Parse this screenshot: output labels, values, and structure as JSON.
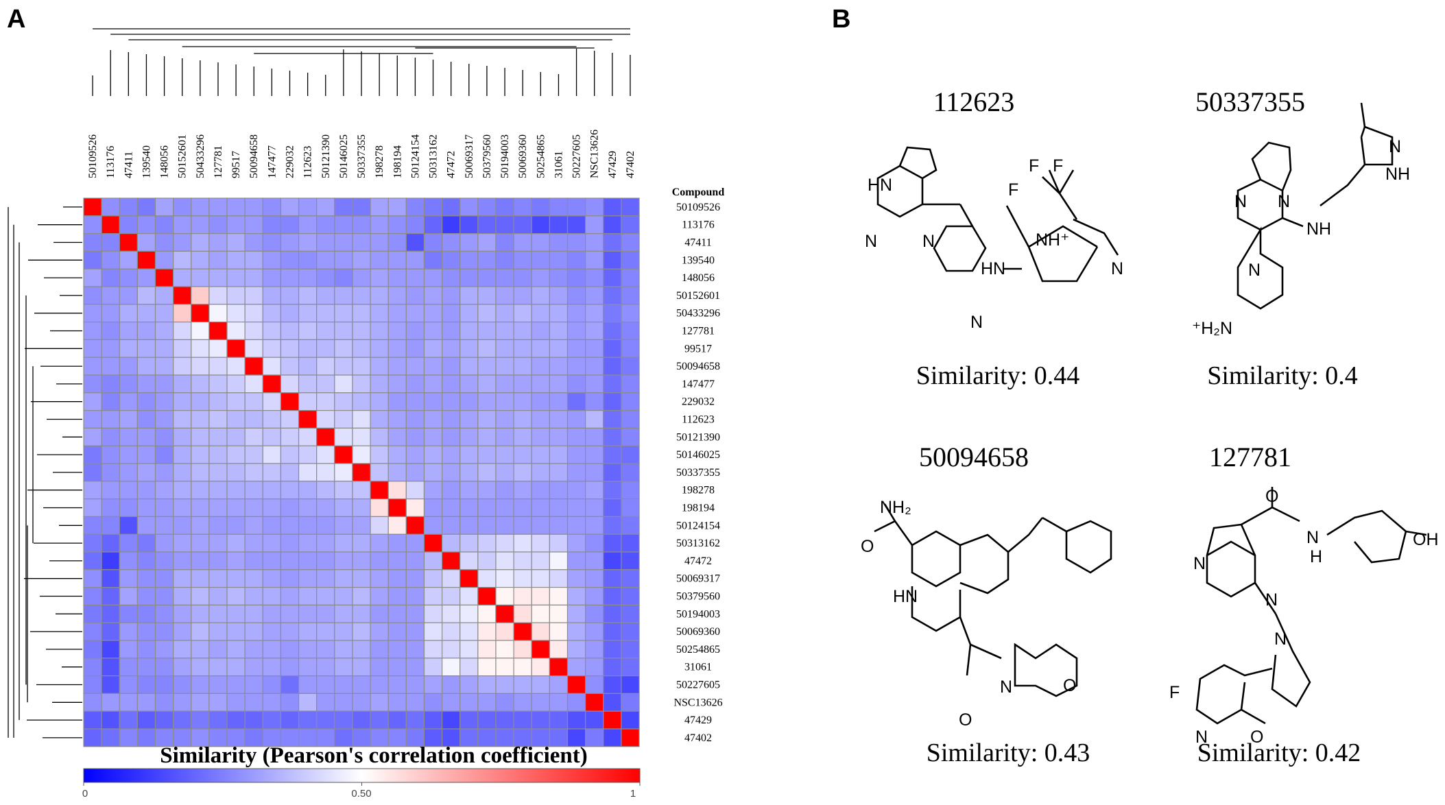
{
  "panels": {
    "a": "A",
    "b": "B"
  },
  "heatmap": {
    "compound_header": "Compound",
    "colorbar_title": "Similarity (Pearson's correlation coefficient)",
    "colorbar_ticks": [
      "0",
      "0.50",
      "1"
    ],
    "colors": {
      "low": "#0000ff",
      "mid": "#ffffff",
      "high": "#ff0000",
      "grid": "#8c8c8c"
    }
  },
  "chart_data": {
    "type": "heatmap",
    "title": "Similarity (Pearson's correlation coefficient)",
    "scale": {
      "min": 0,
      "mid": 0.5,
      "max": 1
    },
    "compounds": [
      "50109526",
      "113176",
      "47411",
      "139540",
      "148056",
      "50152601",
      "50433296",
      "127781",
      "99517",
      "50094658",
      "147477",
      "229032",
      "112623",
      "50121390",
      "50146025",
      "50337355",
      "198278",
      "198194",
      "50124154",
      "50313162",
      "47472",
      "50069317",
      "50379560",
      "50194003",
      "50069360",
      "50254865",
      "31061",
      "50227605",
      "NSC13626",
      "47429",
      "47402"
    ],
    "values": [
      [
        1,
        0.28,
        0.26,
        0.24,
        0.32,
        0.28,
        0.3,
        0.3,
        0.3,
        0.3,
        0.28,
        0.32,
        0.3,
        0.32,
        0.24,
        0.24,
        0.32,
        0.32,
        0.26,
        0.24,
        0.22,
        0.28,
        0.26,
        0.24,
        0.26,
        0.24,
        0.26,
        0.26,
        0.28,
        0.18,
        0.2
      ],
      [
        0.28,
        1,
        0.26,
        0.28,
        0.26,
        0.3,
        0.3,
        0.28,
        0.3,
        0.3,
        0.26,
        0.26,
        0.3,
        0.28,
        0.28,
        0.28,
        0.3,
        0.28,
        0.26,
        0.2,
        0.12,
        0.16,
        0.2,
        0.2,
        0.2,
        0.14,
        0.16,
        0.16,
        0.3,
        0.16,
        0.22
      ],
      [
        0.26,
        0.26,
        1,
        0.32,
        0.28,
        0.3,
        0.34,
        0.32,
        0.34,
        0.3,
        0.28,
        0.3,
        0.32,
        0.3,
        0.3,
        0.3,
        0.3,
        0.28,
        0.16,
        0.26,
        0.28,
        0.3,
        0.32,
        0.26,
        0.3,
        0.3,
        0.28,
        0.28,
        0.3,
        0.22,
        0.26
      ],
      [
        0.24,
        0.28,
        0.32,
        1,
        0.3,
        0.36,
        0.34,
        0.32,
        0.34,
        0.34,
        0.3,
        0.28,
        0.28,
        0.3,
        0.3,
        0.32,
        0.3,
        0.3,
        0.3,
        0.24,
        0.26,
        0.28,
        0.28,
        0.26,
        0.28,
        0.28,
        0.28,
        0.26,
        0.3,
        0.18,
        0.24
      ],
      [
        0.32,
        0.26,
        0.28,
        0.3,
        1,
        0.34,
        0.34,
        0.34,
        0.34,
        0.34,
        0.3,
        0.3,
        0.3,
        0.28,
        0.26,
        0.3,
        0.32,
        0.3,
        0.3,
        0.3,
        0.28,
        0.28,
        0.28,
        0.28,
        0.28,
        0.3,
        0.28,
        0.26,
        0.28,
        0.2,
        0.26
      ],
      [
        0.28,
        0.3,
        0.3,
        0.36,
        0.34,
        1,
        0.6,
        0.42,
        0.4,
        0.4,
        0.34,
        0.34,
        0.36,
        0.34,
        0.34,
        0.34,
        0.34,
        0.32,
        0.3,
        0.32,
        0.3,
        0.34,
        0.34,
        0.32,
        0.32,
        0.34,
        0.32,
        0.28,
        0.3,
        0.22,
        0.26
      ],
      [
        0.3,
        0.3,
        0.34,
        0.34,
        0.34,
        0.6,
        1,
        0.48,
        0.44,
        0.42,
        0.36,
        0.34,
        0.36,
        0.36,
        0.36,
        0.36,
        0.34,
        0.32,
        0.32,
        0.32,
        0.3,
        0.34,
        0.36,
        0.34,
        0.36,
        0.34,
        0.34,
        0.3,
        0.32,
        0.24,
        0.28
      ],
      [
        0.3,
        0.28,
        0.32,
        0.32,
        0.34,
        0.42,
        0.48,
        1,
        0.46,
        0.42,
        0.38,
        0.36,
        0.38,
        0.36,
        0.36,
        0.36,
        0.34,
        0.32,
        0.3,
        0.32,
        0.3,
        0.34,
        0.34,
        0.34,
        0.34,
        0.32,
        0.34,
        0.3,
        0.32,
        0.22,
        0.26
      ],
      [
        0.3,
        0.3,
        0.34,
        0.34,
        0.34,
        0.4,
        0.44,
        0.46,
        1,
        0.44,
        0.4,
        0.38,
        0.36,
        0.36,
        0.38,
        0.36,
        0.34,
        0.32,
        0.3,
        0.34,
        0.32,
        0.34,
        0.36,
        0.34,
        0.34,
        0.34,
        0.34,
        0.3,
        0.3,
        0.2,
        0.26
      ],
      [
        0.3,
        0.3,
        0.3,
        0.34,
        0.34,
        0.4,
        0.42,
        0.42,
        0.44,
        1,
        0.44,
        0.38,
        0.36,
        0.4,
        0.38,
        0.38,
        0.34,
        0.32,
        0.32,
        0.32,
        0.3,
        0.34,
        0.34,
        0.34,
        0.34,
        0.32,
        0.32,
        0.3,
        0.3,
        0.2,
        0.24
      ],
      [
        0.28,
        0.26,
        0.28,
        0.3,
        0.3,
        0.34,
        0.36,
        0.38,
        0.4,
        0.44,
        1,
        0.42,
        0.38,
        0.38,
        0.44,
        0.38,
        0.34,
        0.32,
        0.3,
        0.32,
        0.3,
        0.32,
        0.34,
        0.32,
        0.32,
        0.32,
        0.32,
        0.28,
        0.3,
        0.22,
        0.26
      ],
      [
        0.32,
        0.26,
        0.3,
        0.28,
        0.3,
        0.34,
        0.34,
        0.36,
        0.38,
        0.38,
        0.42,
        1,
        0.4,
        0.4,
        0.38,
        0.36,
        0.34,
        0.3,
        0.3,
        0.3,
        0.3,
        0.3,
        0.32,
        0.32,
        0.32,
        0.3,
        0.3,
        0.22,
        0.28,
        0.2,
        0.26
      ],
      [
        0.3,
        0.3,
        0.32,
        0.28,
        0.3,
        0.36,
        0.36,
        0.38,
        0.36,
        0.36,
        0.38,
        0.4,
        1,
        0.42,
        0.4,
        0.44,
        0.34,
        0.32,
        0.3,
        0.32,
        0.3,
        0.32,
        0.34,
        0.32,
        0.34,
        0.32,
        0.32,
        0.3,
        0.36,
        0.22,
        0.26
      ],
      [
        0.32,
        0.28,
        0.3,
        0.3,
        0.28,
        0.34,
        0.36,
        0.36,
        0.36,
        0.4,
        0.38,
        0.4,
        0.42,
        1,
        0.44,
        0.44,
        0.36,
        0.32,
        0.3,
        0.32,
        0.3,
        0.32,
        0.34,
        0.32,
        0.34,
        0.32,
        0.32,
        0.3,
        0.3,
        0.22,
        0.26
      ],
      [
        0.24,
        0.28,
        0.3,
        0.3,
        0.26,
        0.34,
        0.36,
        0.36,
        0.38,
        0.38,
        0.44,
        0.38,
        0.4,
        0.44,
        1,
        0.46,
        0.38,
        0.34,
        0.32,
        0.34,
        0.32,
        0.34,
        0.34,
        0.34,
        0.34,
        0.34,
        0.34,
        0.3,
        0.3,
        0.22,
        0.22
      ],
      [
        0.24,
        0.28,
        0.3,
        0.32,
        0.3,
        0.34,
        0.36,
        0.36,
        0.36,
        0.38,
        0.38,
        0.36,
        0.44,
        0.44,
        0.46,
        1,
        0.38,
        0.34,
        0.32,
        0.34,
        0.32,
        0.34,
        0.36,
        0.34,
        0.36,
        0.34,
        0.34,
        0.3,
        0.3,
        0.2,
        0.24
      ],
      [
        0.32,
        0.3,
        0.3,
        0.3,
        0.32,
        0.34,
        0.34,
        0.34,
        0.34,
        0.34,
        0.34,
        0.34,
        0.34,
        0.36,
        0.38,
        0.38,
        1,
        0.56,
        0.42,
        0.32,
        0.3,
        0.32,
        0.32,
        0.3,
        0.32,
        0.3,
        0.3,
        0.3,
        0.32,
        0.22,
        0.26
      ],
      [
        0.32,
        0.28,
        0.28,
        0.3,
        0.3,
        0.32,
        0.32,
        0.32,
        0.32,
        0.32,
        0.32,
        0.3,
        0.32,
        0.32,
        0.34,
        0.34,
        0.56,
        1,
        0.54,
        0.3,
        0.3,
        0.3,
        0.3,
        0.3,
        0.3,
        0.3,
        0.3,
        0.3,
        0.3,
        0.2,
        0.26
      ],
      [
        0.26,
        0.26,
        0.16,
        0.3,
        0.3,
        0.3,
        0.32,
        0.3,
        0.3,
        0.32,
        0.3,
        0.3,
        0.3,
        0.3,
        0.32,
        0.32,
        0.42,
        0.54,
        1,
        0.3,
        0.3,
        0.3,
        0.3,
        0.3,
        0.3,
        0.3,
        0.3,
        0.3,
        0.3,
        0.22,
        0.24
      ],
      [
        0.24,
        0.2,
        0.26,
        0.24,
        0.3,
        0.32,
        0.32,
        0.32,
        0.34,
        0.32,
        0.32,
        0.3,
        0.32,
        0.32,
        0.34,
        0.34,
        0.32,
        0.3,
        0.3,
        1,
        0.36,
        0.38,
        0.4,
        0.42,
        0.44,
        0.42,
        0.4,
        0.32,
        0.28,
        0.18,
        0.18
      ],
      [
        0.22,
        0.12,
        0.28,
        0.26,
        0.28,
        0.3,
        0.3,
        0.3,
        0.32,
        0.3,
        0.3,
        0.3,
        0.3,
        0.3,
        0.32,
        0.32,
        0.3,
        0.3,
        0.3,
        0.36,
        1,
        0.42,
        0.4,
        0.44,
        0.42,
        0.42,
        0.48,
        0.3,
        0.3,
        0.14,
        0.16
      ],
      [
        0.28,
        0.16,
        0.3,
        0.28,
        0.28,
        0.34,
        0.34,
        0.34,
        0.34,
        0.34,
        0.32,
        0.3,
        0.32,
        0.32,
        0.34,
        0.34,
        0.32,
        0.3,
        0.3,
        0.38,
        0.42,
        1,
        0.44,
        0.46,
        0.44,
        0.44,
        0.42,
        0.32,
        0.3,
        0.2,
        0.22
      ],
      [
        0.26,
        0.2,
        0.32,
        0.28,
        0.28,
        0.34,
        0.36,
        0.34,
        0.36,
        0.34,
        0.34,
        0.32,
        0.34,
        0.34,
        0.34,
        0.36,
        0.32,
        0.3,
        0.3,
        0.4,
        0.4,
        0.44,
        1,
        0.52,
        0.54,
        0.54,
        0.52,
        0.34,
        0.3,
        0.2,
        0.22
      ],
      [
        0.24,
        0.2,
        0.26,
        0.26,
        0.28,
        0.32,
        0.34,
        0.34,
        0.34,
        0.34,
        0.32,
        0.32,
        0.32,
        0.32,
        0.34,
        0.34,
        0.3,
        0.3,
        0.3,
        0.42,
        0.44,
        0.46,
        0.52,
        1,
        0.56,
        0.52,
        0.52,
        0.34,
        0.28,
        0.2,
        0.22
      ],
      [
        0.26,
        0.2,
        0.3,
        0.28,
        0.28,
        0.32,
        0.36,
        0.34,
        0.34,
        0.34,
        0.32,
        0.32,
        0.34,
        0.34,
        0.34,
        0.36,
        0.32,
        0.3,
        0.3,
        0.44,
        0.42,
        0.44,
        0.54,
        0.56,
        1,
        0.56,
        0.52,
        0.34,
        0.3,
        0.2,
        0.22
      ],
      [
        0.24,
        0.14,
        0.3,
        0.28,
        0.3,
        0.34,
        0.34,
        0.32,
        0.34,
        0.32,
        0.32,
        0.3,
        0.32,
        0.32,
        0.34,
        0.34,
        0.3,
        0.3,
        0.3,
        0.42,
        0.42,
        0.44,
        0.54,
        0.52,
        0.56,
        1,
        0.54,
        0.34,
        0.3,
        0.2,
        0.22
      ],
      [
        0.26,
        0.16,
        0.28,
        0.28,
        0.28,
        0.32,
        0.34,
        0.34,
        0.34,
        0.32,
        0.32,
        0.3,
        0.32,
        0.32,
        0.34,
        0.34,
        0.3,
        0.3,
        0.3,
        0.4,
        0.48,
        0.42,
        0.52,
        0.52,
        0.52,
        0.54,
        1,
        0.32,
        0.3,
        0.2,
        0.22
      ],
      [
        0.26,
        0.16,
        0.28,
        0.26,
        0.26,
        0.28,
        0.3,
        0.3,
        0.3,
        0.3,
        0.28,
        0.22,
        0.3,
        0.3,
        0.3,
        0.3,
        0.3,
        0.3,
        0.3,
        0.32,
        0.3,
        0.32,
        0.34,
        0.34,
        0.34,
        0.34,
        0.32,
        1,
        0.28,
        0.16,
        0.14
      ],
      [
        0.28,
        0.3,
        0.3,
        0.3,
        0.28,
        0.3,
        0.32,
        0.32,
        0.3,
        0.3,
        0.3,
        0.28,
        0.36,
        0.3,
        0.3,
        0.3,
        0.32,
        0.3,
        0.3,
        0.28,
        0.3,
        0.3,
        0.3,
        0.28,
        0.3,
        0.3,
        0.3,
        0.28,
        1,
        0.16,
        0.24
      ],
      [
        0.18,
        0.16,
        0.22,
        0.18,
        0.2,
        0.22,
        0.24,
        0.22,
        0.2,
        0.2,
        0.22,
        0.2,
        0.22,
        0.22,
        0.22,
        0.2,
        0.22,
        0.2,
        0.22,
        0.18,
        0.14,
        0.2,
        0.2,
        0.2,
        0.2,
        0.2,
        0.2,
        0.16,
        0.16,
        1,
        0.14
      ],
      [
        0.2,
        0.22,
        0.26,
        0.24,
        0.26,
        0.26,
        0.28,
        0.26,
        0.26,
        0.24,
        0.26,
        0.26,
        0.26,
        0.26,
        0.22,
        0.24,
        0.26,
        0.26,
        0.24,
        0.18,
        0.16,
        0.22,
        0.22,
        0.22,
        0.22,
        0.22,
        0.22,
        0.14,
        0.24,
        0.14,
        1
      ]
    ]
  },
  "molecules": [
    {
      "id": "112623",
      "similarity": "Similarity: 0.44"
    },
    {
      "id": "50337355",
      "similarity": "Similarity: 0.4"
    },
    {
      "id": "50094658",
      "similarity": "Similarity: 0.43"
    },
    {
      "id": "127781",
      "similarity": "Similarity: 0.42"
    }
  ],
  "atoms": {
    "hn": "HN",
    "n": "N",
    "f": "F",
    "nhplus": "NH⁺",
    "nh": "NH",
    "h2nplus": "⁺H₂N",
    "nh2": "NH₂",
    "o": "O",
    "oh": "OH",
    "h": "H"
  }
}
